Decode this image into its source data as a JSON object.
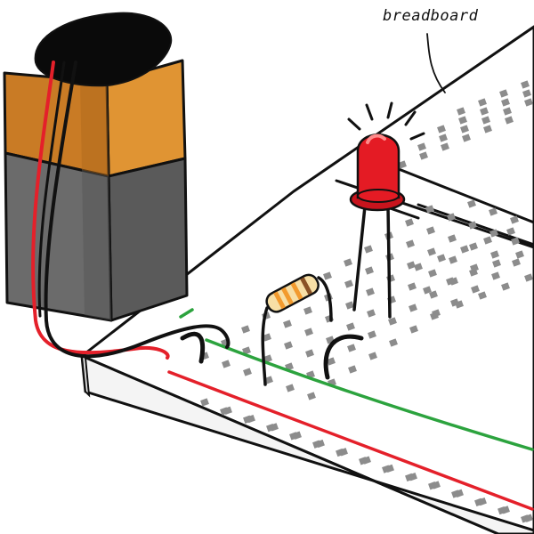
{
  "labels": {
    "breadboard": "breadboard"
  },
  "colors": {
    "battery_gold": "#c97b25",
    "battery_gold_light": "#e09433",
    "battery_gray": "#6b6b6b",
    "battery_gray_dark": "#4e4e4e",
    "battery_cap": "#0a0a0a",
    "board_top": "#ffffff",
    "board_edge": "#f4f4f4",
    "hole": "#8c8c8c",
    "rail_red": "#e4202a",
    "rail_green": "#2ca33e",
    "wire_red": "#e4202a",
    "wire_black": "#111111",
    "led_red": "#e41b24",
    "led_highlight": "#ff8a8a",
    "resistor_body": "#f7dfa6",
    "resistor_band_orange": "#f29a2e",
    "resistor_band_brown": "#8a5226",
    "outline": "#111111"
  },
  "icons": [
    "battery-9v-icon",
    "led-icon",
    "resistor-icon",
    "jumper-wire-icon"
  ]
}
